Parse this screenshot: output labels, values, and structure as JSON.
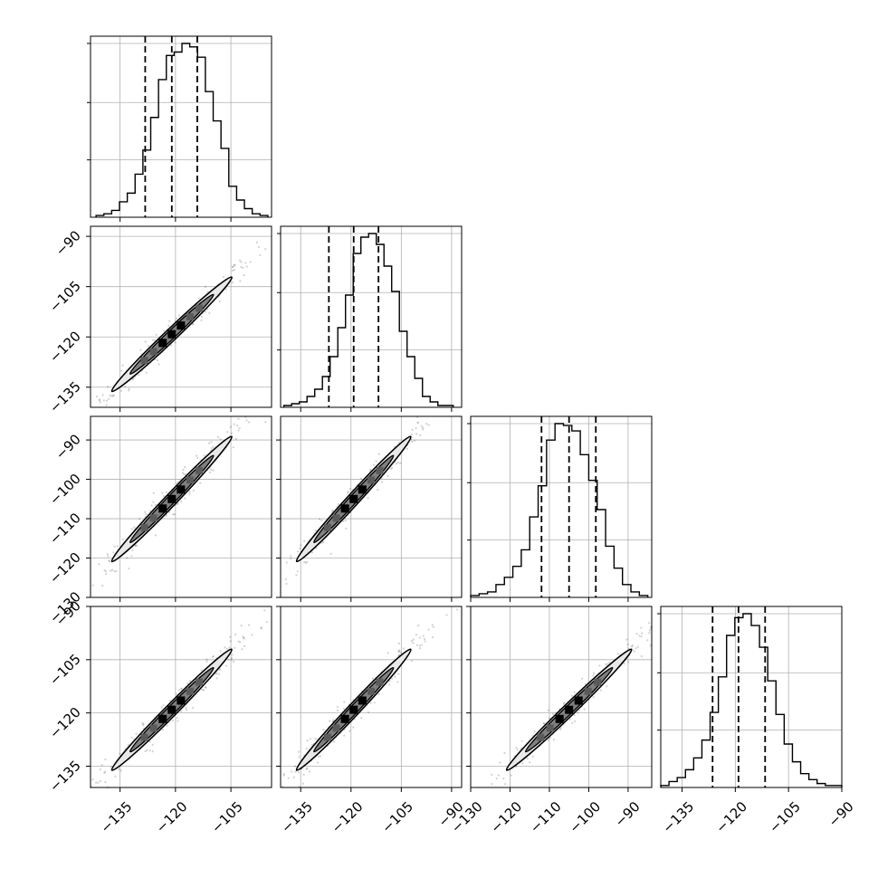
{
  "chart_data": {
    "type": "corner",
    "parameters": 4,
    "colors": {
      "line": "#000000",
      "grid": "#b0b0b0",
      "points": "#000000",
      "fill_dark": "#000000",
      "fill_mid": "#808080",
      "fill_light": "#e8e8e8"
    },
    "grid": true,
    "tick_labels": {
      "p0": [
        "−135",
        "−120",
        "−105"
      ],
      "p1": [
        "−135",
        "−120",
        "−105",
        "−90"
      ],
      "p2": [
        "−130",
        "−120",
        "−110",
        "−100",
        "−90"
      ],
      "p3": [
        "−135",
        "−120",
        "−105",
        "−90"
      ]
    },
    "axis_ranges": {
      "p0": [
        -143,
        -94
      ],
      "p1": [
        -141,
        -87
      ],
      "p2": [
        -130,
        -84
      ],
      "p3": [
        -141,
        -90
      ]
    },
    "quantiles": {
      "p0": [
        -128.2,
        -121.0,
        -114.1
      ],
      "p1": [
        -126.6,
        -119.2,
        -111.8
      ],
      "p2": [
        -112.0,
        -105.0,
        -98.2
      ],
      "p3": [
        -126.4,
        -119.1,
        -111.6
      ]
    },
    "histograms": {
      "p0": {
        "range": [
          -141.5,
          -95.0
        ],
        "counts": [
          1,
          2,
          4,
          9,
          14,
          25,
          39,
          58,
          80,
          94,
          96,
          101,
          99,
          93,
          73,
          56,
          40,
          18,
          10,
          5,
          2,
          1
        ]
      },
      "p1": {
        "range": [
          -140.0,
          -89.5
        ],
        "counts": [
          1,
          2,
          3,
          6,
          10,
          17,
          28,
          44,
          62,
          85,
          94,
          96,
          90,
          78,
          64,
          42,
          28,
          16,
          6,
          3,
          1,
          1
        ]
      },
      "p2": {
        "range": [
          -130.0,
          -85.0
        ],
        "counts": [
          1,
          2,
          3,
          7,
          11,
          17,
          26,
          44,
          61,
          86,
          95,
          94,
          91,
          78,
          64,
          48,
          28,
          16,
          7,
          3,
          1
        ]
      },
      "p3": {
        "range": [
          -141.0,
          -90.0
        ],
        "counts": [
          1,
          3,
          5,
          9,
          15,
          24,
          38,
          56,
          77,
          86,
          88,
          82,
          71,
          54,
          37,
          22,
          13,
          7,
          4,
          2,
          1,
          1
        ]
      }
    }
  }
}
